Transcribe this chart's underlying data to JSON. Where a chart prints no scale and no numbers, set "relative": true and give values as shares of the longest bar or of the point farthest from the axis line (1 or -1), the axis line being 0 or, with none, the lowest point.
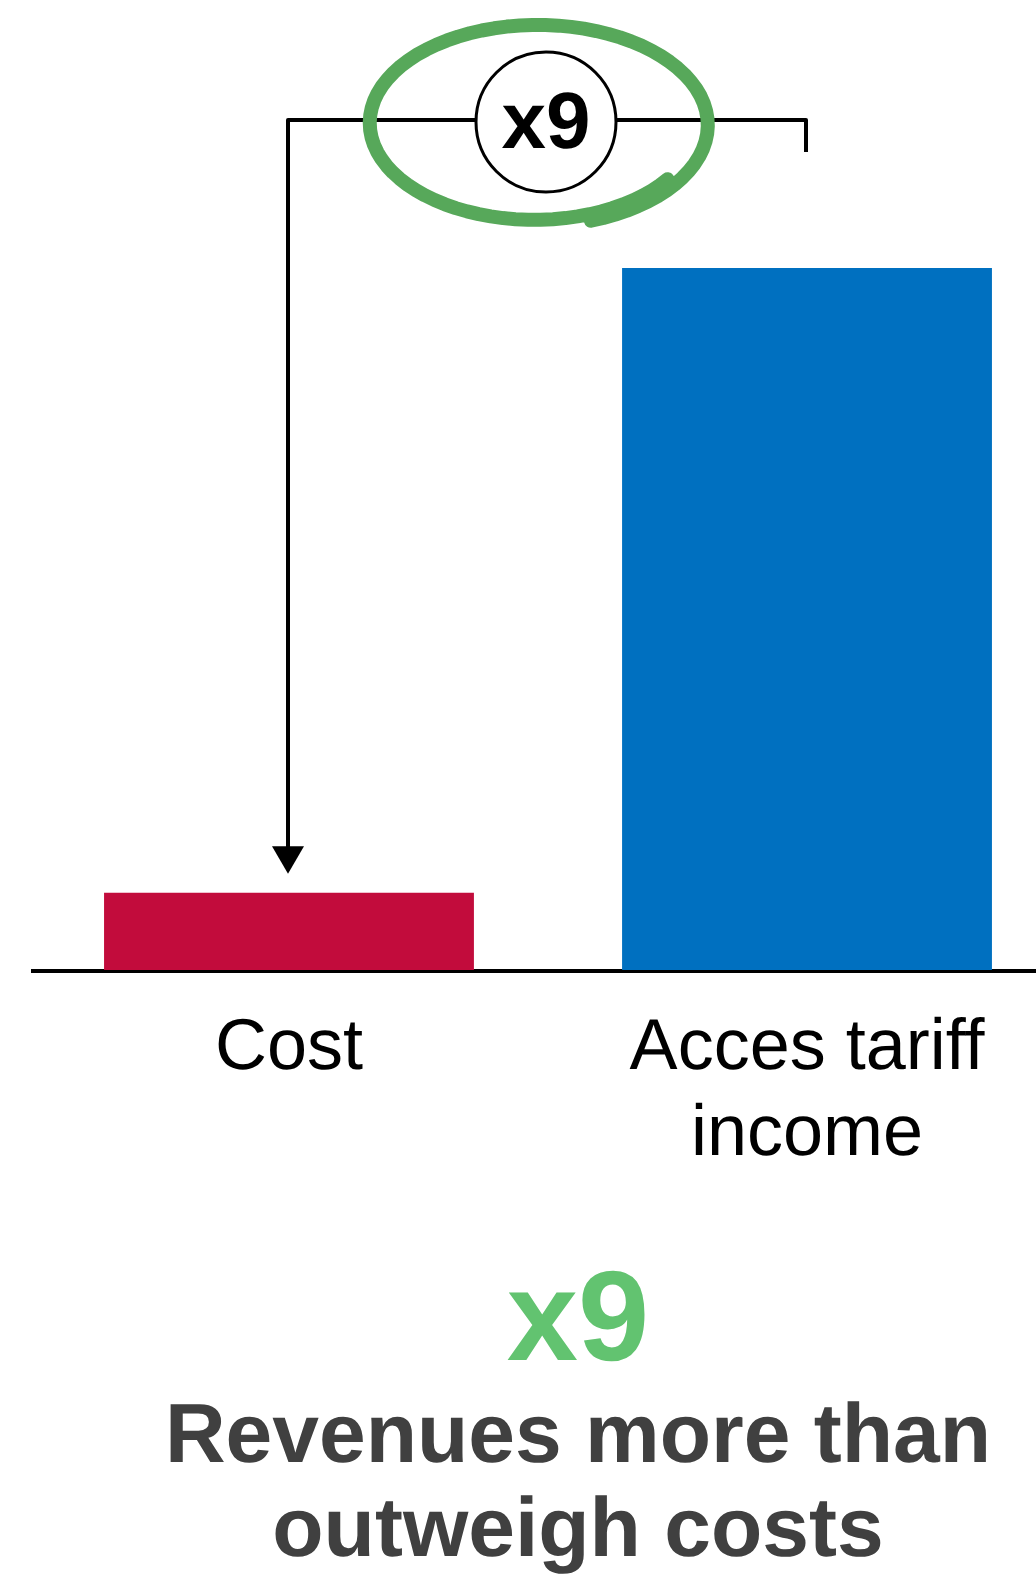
{
  "chart_data": {
    "type": "bar",
    "relative": true,
    "categories": [
      "Cost",
      "Acces tariff income"
    ],
    "values": [
      0.11,
      1
    ],
    "colors": [
      "#c20c3c",
      "#0070c0"
    ],
    "annotations": [
      "x9",
      "x9",
      "Revenues more than outweigh costs"
    ]
  }
}
